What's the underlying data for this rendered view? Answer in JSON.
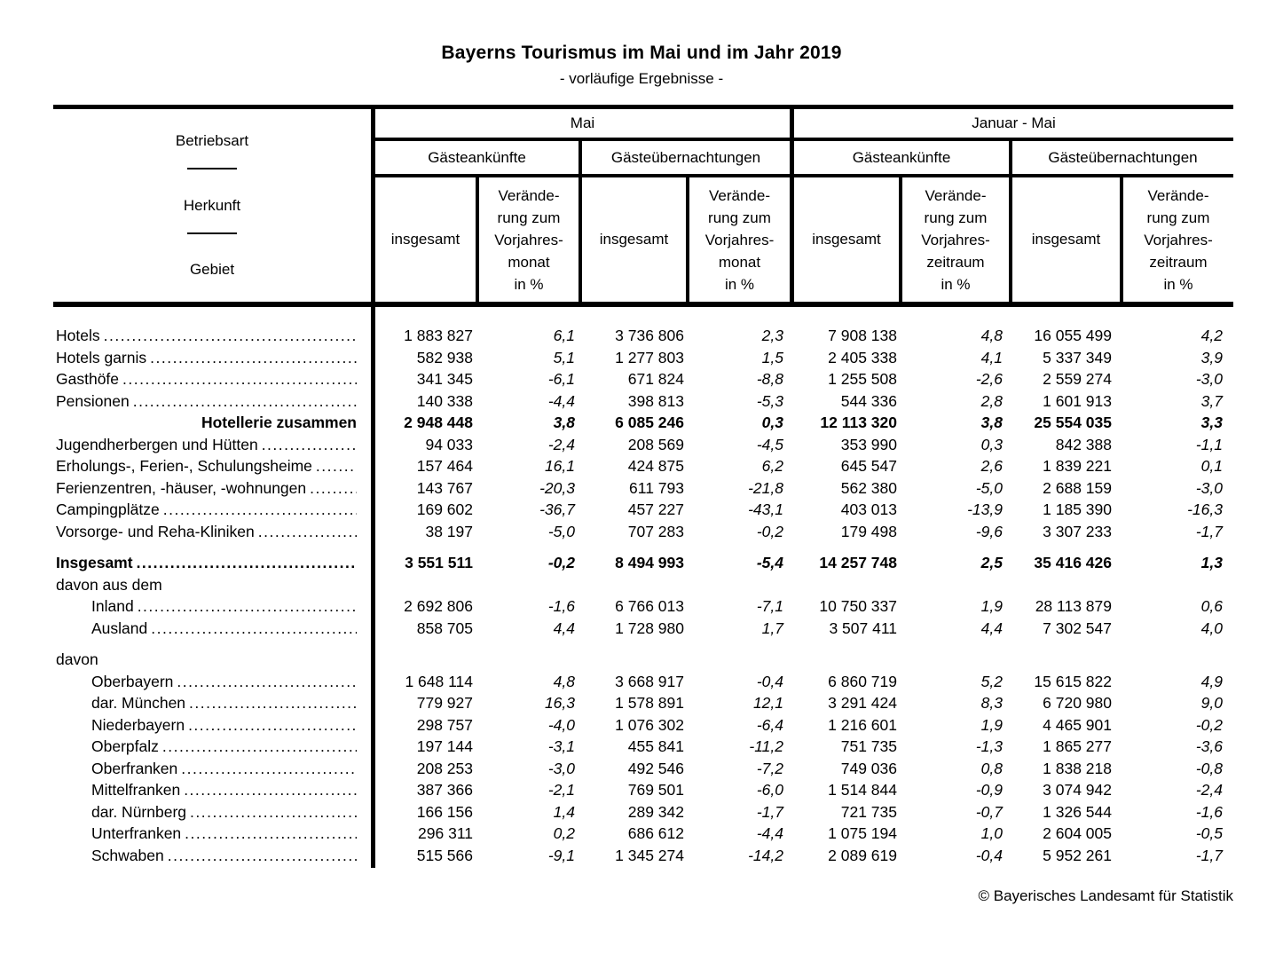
{
  "title": "Bayerns Tourismus im Mai und im Jahr 2019",
  "subtitle": "- vorläufige Ergebnisse -",
  "table": {
    "header": {
      "stub_lines": [
        "Betriebsart",
        "Herkunft",
        "Gebiet"
      ],
      "group_mai": "Mai",
      "group_jan_mai": "Januar - Mai",
      "arrivals": "Gästeankünfte",
      "overnights": "Gästeübernachtungen",
      "total": "insgesamt",
      "change_vs_month": "Verände-\nrung zum\nVorjahres-\nmonat\nin %",
      "change_vs_period": "Verände-\nrung zum\nVorjahres-\nzeitraum\nin %"
    },
    "rows": [
      {
        "label": "Hotels",
        "dots": true,
        "values": [
          "1 883 827",
          "6,1",
          "3 736 806",
          "2,3",
          "7 908 138",
          "4,8",
          "16 055 499",
          "4,2"
        ]
      },
      {
        "label": "Hotels garnis",
        "dots": true,
        "values": [
          "582 938",
          "5,1",
          "1 277 803",
          "1,5",
          "2 405 338",
          "4,1",
          "5 337 349",
          "3,9"
        ]
      },
      {
        "label": "Gasthöfe",
        "dots": true,
        "values": [
          "341 345",
          "-6,1",
          "671 824",
          "-8,8",
          "1 255 508",
          "-2,6",
          "2 559 274",
          "-3,0"
        ]
      },
      {
        "label": "Pensionen",
        "dots": true,
        "values": [
          "140 338",
          "-4,4",
          "398 813",
          "-5,3",
          "544 336",
          "2,8",
          "1 601 913",
          "3,7"
        ]
      },
      {
        "label": "Hotellerie zusammen",
        "bold": true,
        "align": "right",
        "values": [
          "2 948 448",
          "3,8",
          "6 085 246",
          "0,3",
          "12 113 320",
          "3,8",
          "25 554 035",
          "3,3"
        ]
      },
      {
        "label": "Jugendherbergen und Hütten",
        "dots": true,
        "values": [
          "94 033",
          "-2,4",
          "208 569",
          "-4,5",
          "353 990",
          "0,3",
          "842 388",
          "-1,1"
        ]
      },
      {
        "label": "Erholungs-, Ferien-, Schulungsheime",
        "dots": true,
        "values": [
          "157 464",
          "16,1",
          "424 875",
          "6,2",
          "645 547",
          "2,6",
          "1 839 221",
          "0,1"
        ]
      },
      {
        "label": "Ferienzentren, -häuser, -wohnungen",
        "dots": true,
        "values": [
          "143 767",
          "-20,3",
          "611 793",
          "-21,8",
          "562 380",
          "-5,0",
          "2 688 159",
          "-3,0"
        ]
      },
      {
        "label": "Campingplätze",
        "dots": true,
        "values": [
          "169 602",
          "-36,7",
          "457 227",
          "-43,1",
          "403 013",
          "-13,9",
          "1 185 390",
          "-16,3"
        ]
      },
      {
        "label": "Vorsorge- und Reha-Kliniken",
        "dots": true,
        "values": [
          "38 197",
          "-5,0",
          "707 283",
          "-0,2",
          "179 498",
          "-9,6",
          "3 307 233",
          "-1,7"
        ]
      },
      {
        "label": "Insgesamt",
        "bold": true,
        "dots": true,
        "gap_before": true,
        "values": [
          "3 551 511",
          "-0,2",
          "8 494 993",
          "-5,4",
          "14 257 748",
          "2,5",
          "35 416 426",
          "1,3"
        ]
      },
      {
        "label": "davon aus dem",
        "section": true,
        "values": []
      },
      {
        "label": "Inland",
        "indent": true,
        "dots": true,
        "values": [
          "2 692 806",
          "-1,6",
          "6 766 013",
          "-7,1",
          "10 750 337",
          "1,9",
          "28 113 879",
          "0,6"
        ]
      },
      {
        "label": "Ausland",
        "indent": true,
        "dots": true,
        "values": [
          "858 705",
          "4,4",
          "1 728 980",
          "1,7",
          "3 507 411",
          "4,4",
          "7 302 547",
          "4,0"
        ]
      },
      {
        "label": "davon",
        "section": true,
        "gap_before": true,
        "values": []
      },
      {
        "label": "Oberbayern",
        "indent": true,
        "dots": true,
        "values": [
          "1 648 114",
          "4,8",
          "3 668 917",
          "-0,4",
          "6 860 719",
          "5,2",
          "15 615 822",
          "4,9"
        ]
      },
      {
        "label": "dar. München",
        "indent": true,
        "dots": true,
        "values": [
          "779 927",
          "16,3",
          "1 578 891",
          "12,1",
          "3 291 424",
          "8,3",
          "6 720 980",
          "9,0"
        ]
      },
      {
        "label": "Niederbayern",
        "indent": true,
        "dots": true,
        "values": [
          "298 757",
          "-4,0",
          "1 076 302",
          "-6,4",
          "1 216 601",
          "1,9",
          "4 465 901",
          "-0,2"
        ]
      },
      {
        "label": "Oberpfalz",
        "indent": true,
        "dots": true,
        "values": [
          "197 144",
          "-3,1",
          "455 841",
          "-11,2",
          "751 735",
          "-1,3",
          "1 865 277",
          "-3,6"
        ]
      },
      {
        "label": "Oberfranken",
        "indent": true,
        "dots": true,
        "values": [
          "208 253",
          "-3,0",
          "492 546",
          "-7,2",
          "749 036",
          "0,8",
          "1 838 218",
          "-0,8"
        ]
      },
      {
        "label": "Mittelfranken",
        "indent": true,
        "dots": true,
        "values": [
          "387 366",
          "-2,1",
          "769 501",
          "-6,0",
          "1 514 844",
          "-0,9",
          "3 074 942",
          "-2,4"
        ]
      },
      {
        "label": "dar. Nürnberg",
        "indent": true,
        "dots": true,
        "values": [
          "166 156",
          "1,4",
          "289 342",
          "-1,7",
          "721 735",
          "-0,7",
          "1 326 544",
          "-1,6"
        ]
      },
      {
        "label": "Unterfranken",
        "indent": true,
        "dots": true,
        "values": [
          "296 311",
          "0,2",
          "686 612",
          "-4,4",
          "1 075 194",
          "1,0",
          "2 604 005",
          "-0,5"
        ]
      },
      {
        "label": "Schwaben",
        "indent": true,
        "dots": true,
        "values": [
          "515 566",
          "-9,1",
          "1 345 274",
          "-14,2",
          "2 089 619",
          "-0,4",
          "5 952 261",
          "-1,7"
        ]
      }
    ]
  },
  "footer": "© Bayerisches Landesamt für Statistik"
}
